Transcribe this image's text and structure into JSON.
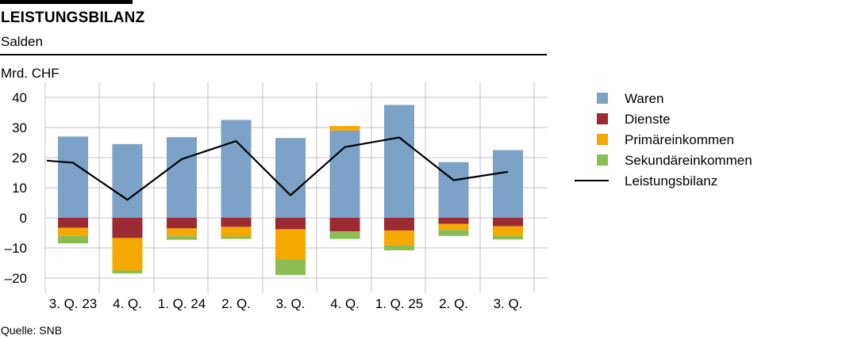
{
  "header": {
    "title": "LEISTUNGSBILANZ",
    "subtitle": "Salden",
    "unit": "Mrd. CHF",
    "source": "Quelle: SNB"
  },
  "chart_data": {
    "type": "bar",
    "stacked": true,
    "categories": [
      "3. Q. 23",
      "4. Q.",
      "1. Q. 24",
      "2. Q.",
      "3. Q.",
      "4. Q.",
      "1. Q. 25",
      "2. Q.",
      "3. Q."
    ],
    "ylim": [
      -25,
      45
    ],
    "yticks": [
      40,
      30,
      20,
      10,
      0,
      -10,
      -20
    ],
    "ytick_labels": [
      "40",
      "30",
      "20",
      "10",
      "0",
      "–10",
      "–20"
    ],
    "grid": true,
    "legend_position": "right",
    "series": [
      {
        "name": "Waren",
        "kind": "bar",
        "color": "#7ca2c7",
        "values": [
          27.0,
          24.5,
          26.8,
          32.5,
          26.5,
          29.0,
          37.5,
          18.5,
          22.5
        ]
      },
      {
        "name": "Dienste",
        "kind": "bar",
        "color": "#9b2a35",
        "values": [
          -3.3,
          -6.7,
          -3.5,
          -3.0,
          -3.8,
          -4.5,
          -4.2,
          -2.0,
          -2.8
        ]
      },
      {
        "name": "Primäreinkommen",
        "kind": "bar",
        "color": "#f5a800",
        "values": [
          -2.7,
          -10.8,
          -2.6,
          -3.2,
          -10.0,
          1.5,
          -5.0,
          -2.0,
          -3.2
        ]
      },
      {
        "name": "Sekundäreinkommen",
        "kind": "bar",
        "color": "#8cbd53",
        "values": [
          -2.5,
          -1.0,
          -1.2,
          -0.8,
          -5.2,
          -2.5,
          -1.6,
          -2.0,
          -1.2
        ]
      },
      {
        "name": "Leistungsbilanz",
        "kind": "line",
        "color": "#000000",
        "values": [
          18.3,
          6.0,
          19.5,
          25.5,
          7.5,
          23.5,
          26.7,
          12.5,
          15.3
        ],
        "lead_in_value": 19.0
      }
    ]
  }
}
